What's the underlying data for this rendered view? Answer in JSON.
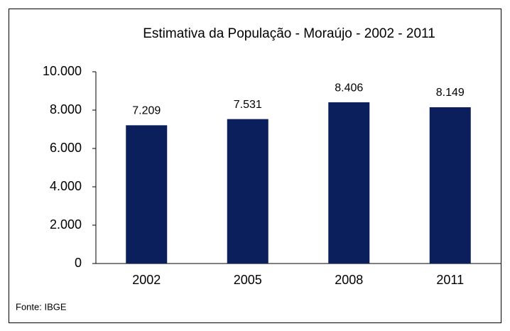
{
  "chart_data": {
    "type": "bar",
    "title": "Estimativa da População - Moraújo - 2002 - 2011",
    "categories": [
      "2002",
      "2005",
      "2008",
      "2011"
    ],
    "values": [
      7209,
      7531,
      8406,
      8149
    ],
    "value_labels": [
      "7.209",
      "7.531",
      "8.406",
      "8.149"
    ],
    "color": "#0b1f5c",
    "ylim": [
      0,
      10000
    ],
    "yticks": [
      0,
      {
        "value": 2000,
        "label": "2.000"
      },
      {
        "value": 4000,
        "label": "4.000"
      },
      {
        "value": 6000,
        "label": "6.000"
      },
      {
        "value": 8000,
        "label": "8.000"
      },
      {
        "value": 10000,
        "label": "10.000"
      }
    ],
    "grid": false,
    "source": "Fonte: IBGE"
  }
}
